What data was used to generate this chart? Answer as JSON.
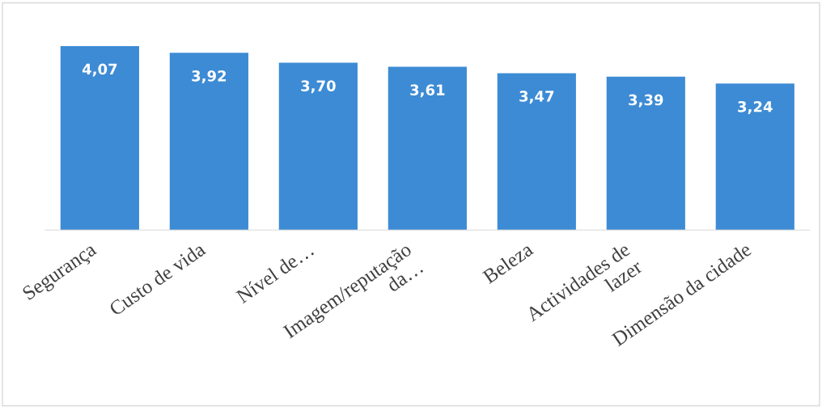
{
  "chart_data": {
    "type": "bar",
    "categories": [
      "Segurança",
      "Custo de vida",
      "Nível de…",
      "Imagem/reputação da…",
      "Beleza",
      "Actividades de lazer",
      "Dimensão da cidade"
    ],
    "values": [
      4.07,
      3.92,
      3.7,
      3.61,
      3.47,
      3.39,
      3.24
    ],
    "value_labels": [
      "4,07",
      "3,92",
      "3,70",
      "3,61",
      "3,47",
      "3,39",
      "3,24"
    ],
    "color": "#3d8bd4",
    "grid": false,
    "legend": false
  }
}
